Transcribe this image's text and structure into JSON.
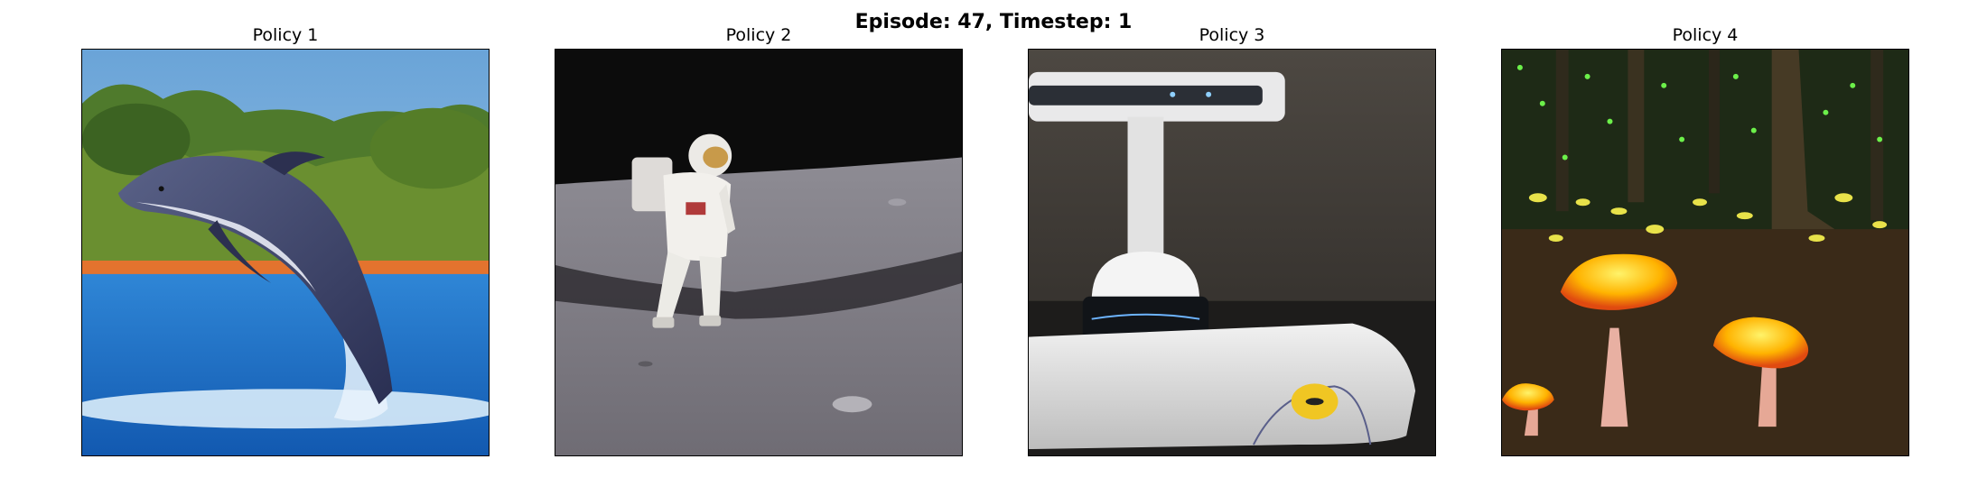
{
  "figure": {
    "title": "Episode: 47, Timestep: 1"
  },
  "panels": [
    {
      "title": "Policy 1",
      "image": "dolphin-leaping-from-water"
    },
    {
      "title": "Policy 2",
      "image": "astronaut-on-moon-surface"
    },
    {
      "title": "Policy 3",
      "image": "white-tech-device-on-stand"
    },
    {
      "title": "Policy 4",
      "image": "glowing-mushrooms-in-forest"
    }
  ]
}
